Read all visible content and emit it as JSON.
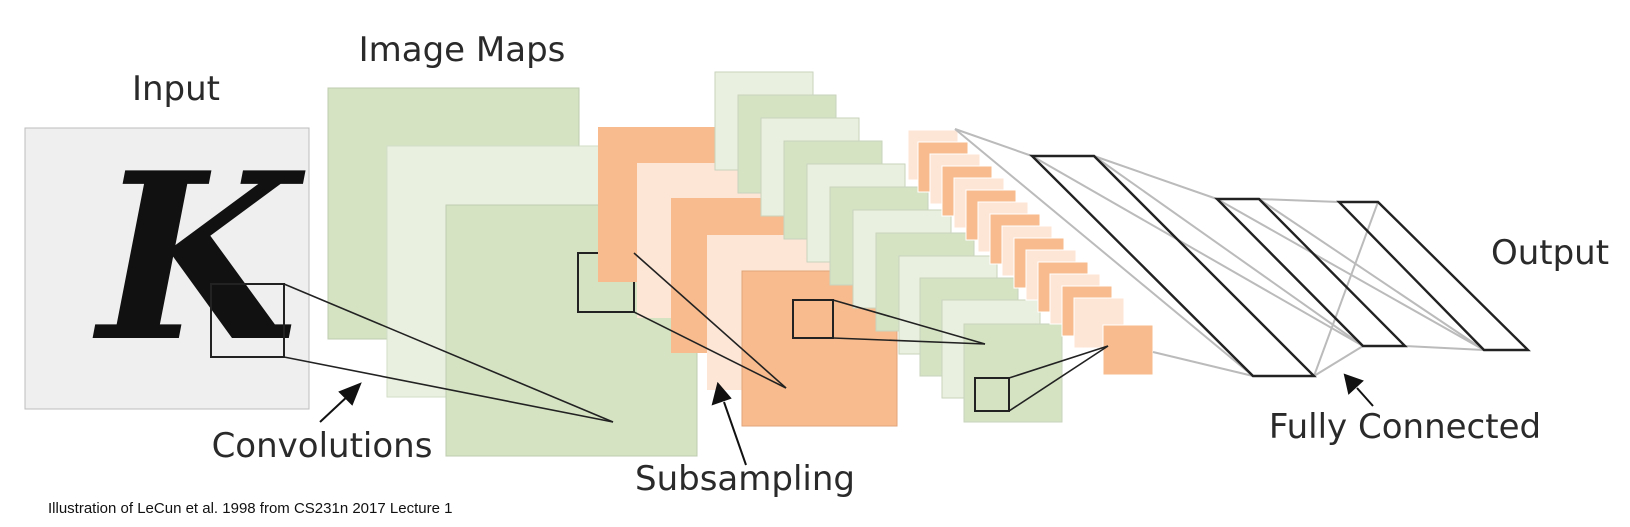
{
  "labels": {
    "input": "Input",
    "image_maps": "Image Maps",
    "convolutions": "Convolutions",
    "subsampling": "Subsampling",
    "fully_connected": "Fully Connected",
    "output": "Output"
  },
  "input_glyph": "K",
  "caption": "Illustration of LeCun et al. 1998 from CS231n 2017 Lecture 1",
  "colors": {
    "green": "#d5e3c3",
    "light_green": "#eaf0e0",
    "orange": "#f7bb8d",
    "light_orange": "#fde6d6",
    "input_bg": "#efefef",
    "line": "#222222",
    "connector": "#bbbbbb"
  }
}
